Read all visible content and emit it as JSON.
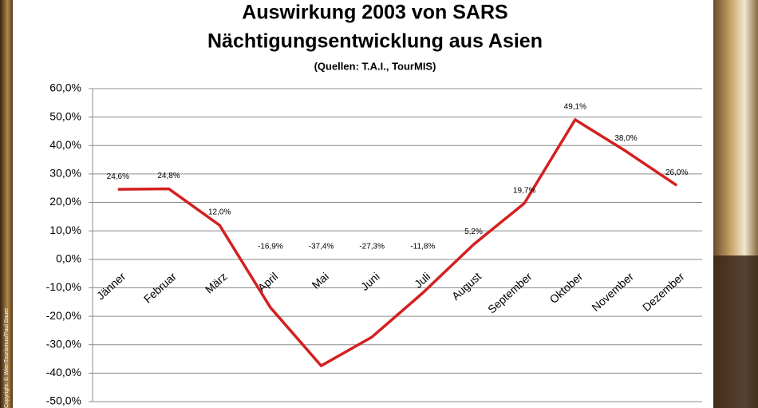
{
  "chart_data": {
    "type": "line",
    "title": "Auswirkung 2003 von SARS",
    "subtitle": "Nächtigungsentwicklung aus Asien",
    "source": "(Quellen: T.A.I., TourMIS)",
    "copyright": "Copyright: © WienTourismus/Paul Bauer",
    "categories": [
      "Jänner",
      "Februar",
      "März",
      "April",
      "Mai",
      "Juni",
      "Juli",
      "August",
      "September",
      "Oktober",
      "November",
      "Dezember"
    ],
    "series": [
      {
        "color": "#d42020",
        "values": [
          24.6,
          24.8,
          12.0,
          -16.9,
          -37.4,
          -27.3,
          -11.8,
          5.2,
          19.7,
          49.1,
          38.0,
          26.0
        ],
        "value_labels": [
          "24,6%",
          "24,8%",
          "12,0%",
          "-16,9%",
          "-37,4%",
          "-27,3%",
          "-11,8%",
          "5,2%",
          "19,7%",
          "49,1%",
          "38,0%",
          "26,0%"
        ]
      }
    ],
    "ylim": [
      -50,
      60
    ],
    "yticks": [
      {
        "value": -50,
        "label": "-50,0%"
      },
      {
        "value": -40,
        "label": "-40,0%"
      },
      {
        "value": -30,
        "label": "-30,0%"
      },
      {
        "value": -20,
        "label": "-20,0%"
      },
      {
        "value": -10,
        "label": "-10,0%"
      },
      {
        "value": 0,
        "label": "0,0%"
      },
      {
        "value": 10,
        "label": "10,0%"
      },
      {
        "value": 20,
        "label": "20,0%"
      },
      {
        "value": 30,
        "label": "30,0%"
      },
      {
        "value": 40,
        "label": "40,0%"
      },
      {
        "value": 50,
        "label": "50,0%"
      },
      {
        "value": 60,
        "label": "60,0%"
      }
    ],
    "grid": true
  }
}
